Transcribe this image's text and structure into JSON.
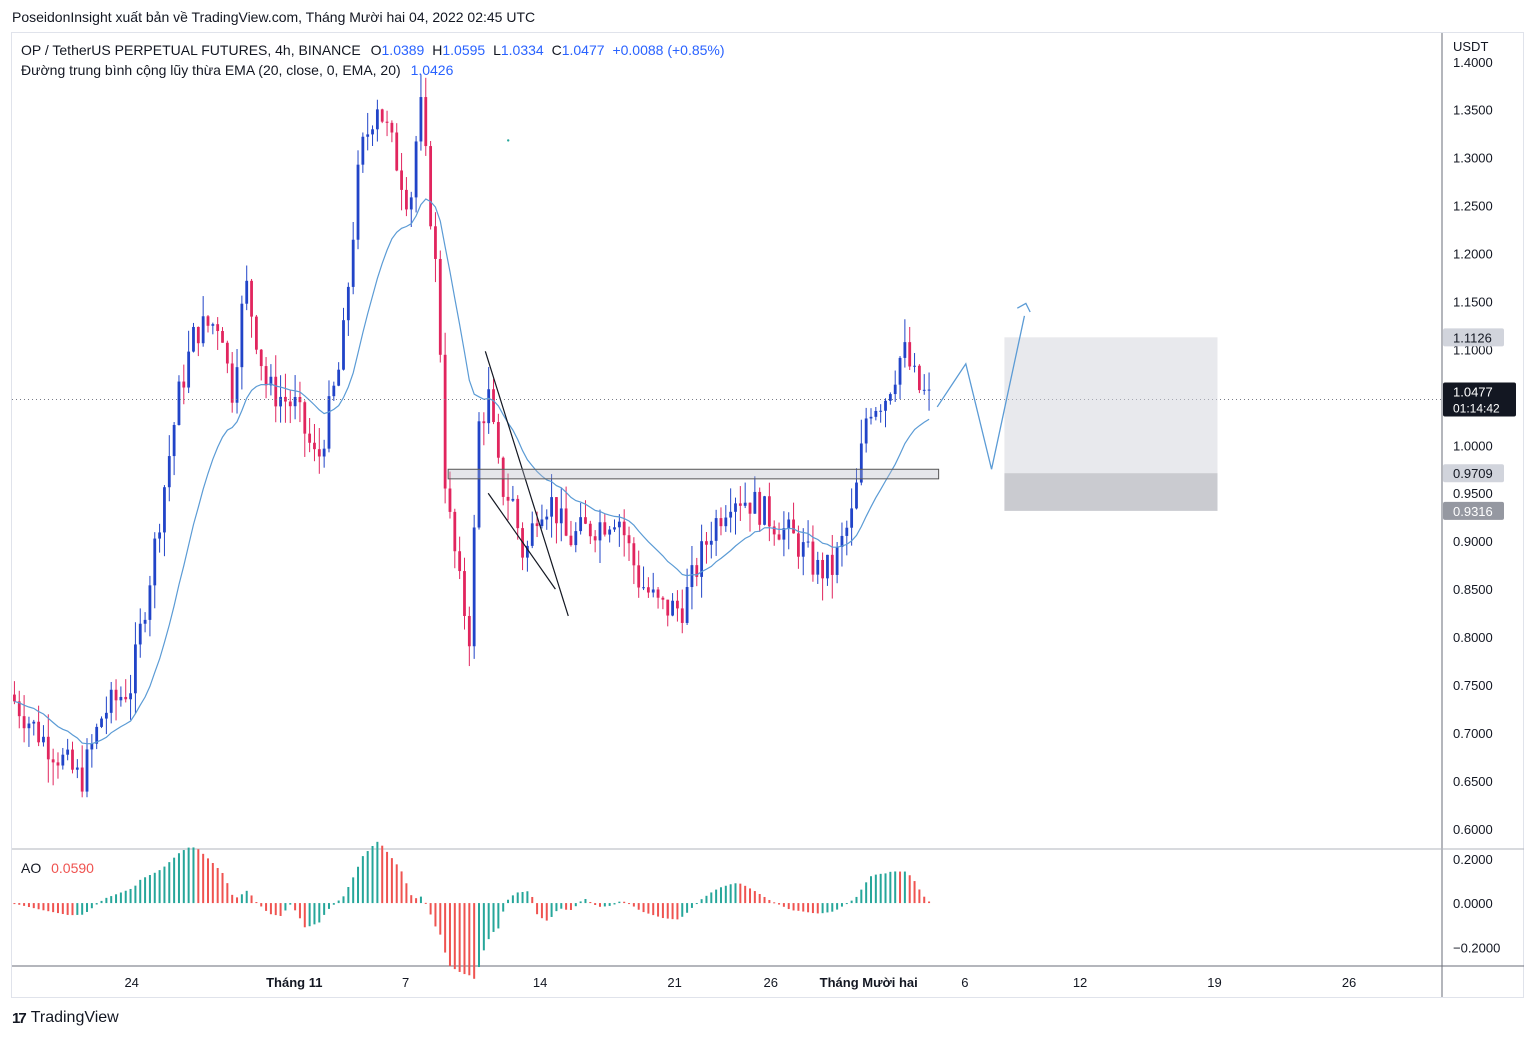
{
  "header": {
    "publish_line": "PoseidonInsight xuất bản về TradingView.com, Tháng Mười hai 04, 2022 02:45 UTC"
  },
  "legend": {
    "symbol": "OP / TetherUS PERPETUAL FUTURES, 4h, BINANCE",
    "o_label": "O",
    "o_value": "1.0389",
    "h_label": "H",
    "h_value": "1.0595",
    "l_label": "L",
    "l_value": "1.0334",
    "c_label": "C",
    "c_value": "1.0477",
    "change": "+0.0088 (+0.85%)",
    "ema_label": "Đường trung bình cộng lũy thừa EMA (20, close, 0, EMA, 20)",
    "ema_value": "1.0426"
  },
  "ao": {
    "label": "AO",
    "value": "0.0590"
  },
  "footer": {
    "brand": "TradingView"
  },
  "colors": {
    "up": "#2144c8",
    "down": "#e1255e",
    "ema": "#5b9bd5",
    "ao_up": "#26a69a",
    "ao_down": "#ef5350"
  },
  "chart_data": {
    "type": "candlestick",
    "y_unit": "USDT",
    "y_ticks": [
      "1.4000",
      "1.3500",
      "1.3000",
      "1.2500",
      "1.2000",
      "1.1500",
      "1.1000",
      "1.0000",
      "0.9500",
      "0.9000",
      "0.8500",
      "0.8000",
      "0.7500",
      "0.7000",
      "0.6500",
      "0.6000"
    ],
    "ylim": [
      0.58,
      1.43
    ],
    "x_ticks": [
      {
        "label": "24",
        "pos": 0.0837
      },
      {
        "label": "Tháng 11",
        "pos": 0.1974
      },
      {
        "label": "7",
        "pos": 0.2753
      },
      {
        "label": "14",
        "pos": 0.3693
      },
      {
        "label": "21",
        "pos": 0.4634
      },
      {
        "label": "26",
        "pos": 0.5306
      },
      {
        "label": "Tháng Mười hai",
        "pos": 0.5991
      },
      {
        "label": "6",
        "pos": 0.6663
      },
      {
        "label": "12",
        "pos": 0.7469
      },
      {
        "label": "19",
        "pos": 0.8409
      },
      {
        "label": "26",
        "pos": 0.935
      }
    ],
    "price_labels": [
      {
        "text": "1.1126",
        "value": 1.1126,
        "style": "light"
      },
      {
        "text": "1.0477",
        "sub": "01:14:42",
        "value": 1.0477,
        "style": "dark"
      },
      {
        "text": "0.9709",
        "value": 0.9709,
        "style": "light"
      },
      {
        "text": "0.9316",
        "value": 0.9316,
        "style": "gray"
      }
    ],
    "price_path": [
      [
        0,
        0.74
      ],
      [
        0.02,
        0.7
      ],
      [
        0.05,
        0.65
      ],
      [
        0.065,
        0.72
      ],
      [
        0.085,
        0.75
      ],
      [
        0.1,
        0.88
      ],
      [
        0.118,
        1.05
      ],
      [
        0.13,
        1.12
      ],
      [
        0.148,
        1.13
      ],
      [
        0.155,
        1.05
      ],
      [
        0.165,
        1.17
      ],
      [
        0.18,
        1.06
      ],
      [
        0.2,
        1.04
      ],
      [
        0.215,
        0.98
      ],
      [
        0.232,
        1.09
      ],
      [
        0.245,
        1.3
      ],
      [
        0.257,
        1.36
      ],
      [
        0.27,
        1.3
      ],
      [
        0.28,
        1.25
      ],
      [
        0.287,
        1.36
      ],
      [
        0.294,
        1.25
      ],
      [
        0.3,
        1.15
      ],
      [
        0.305,
        0.95
      ],
      [
        0.315,
        0.85
      ],
      [
        0.322,
        0.8
      ],
      [
        0.328,
        1.02
      ],
      [
        0.335,
        1.05
      ],
      [
        0.343,
        0.96
      ],
      [
        0.352,
        0.94
      ],
      [
        0.36,
        0.88
      ],
      [
        0.37,
        0.94
      ],
      [
        0.38,
        0.94
      ],
      [
        0.39,
        0.9
      ],
      [
        0.4,
        0.91
      ],
      [
        0.415,
        0.92
      ],
      [
        0.425,
        0.93
      ],
      [
        0.44,
        0.86
      ],
      [
        0.455,
        0.83
      ],
      [
        0.47,
        0.83
      ],
      [
        0.49,
        0.91
      ],
      [
        0.505,
        0.95
      ],
      [
        0.52,
        0.94
      ],
      [
        0.535,
        0.92
      ],
      [
        0.55,
        0.9
      ],
      [
        0.565,
        0.87
      ],
      [
        0.575,
        0.87
      ],
      [
        0.59,
        0.93
      ],
      [
        0.6,
        1.04
      ],
      [
        0.612,
        1.05
      ],
      [
        0.62,
        1.08
      ],
      [
        0.625,
        1.1
      ],
      [
        0.635,
        1.06
      ],
      [
        0.643,
        1.048
      ]
    ],
    "candle_count": 190,
    "ema": {
      "name": "EMA",
      "period": 20
    }
  }
}
